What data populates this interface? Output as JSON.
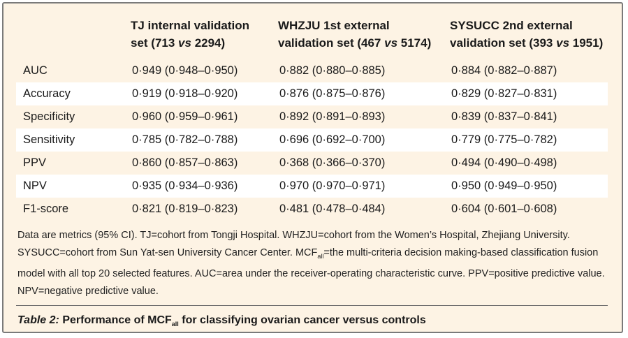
{
  "table": {
    "headers": [
      {
        "line1": "TJ internal validation",
        "line2_prefix": "set (713 ",
        "vs": "vs",
        "line2_suffix": " 2294)"
      },
      {
        "line1": "WHZJU 1st external",
        "line2_prefix": "validation set (467 ",
        "vs": "vs",
        "line2_suffix": " 5174)"
      },
      {
        "line1": "SYSUCC 2nd external",
        "line2_prefix": "validation set (393 ",
        "vs": "vs",
        "line2_suffix": " 1951)"
      }
    ],
    "rows": [
      {
        "metric": "AUC",
        "tj": "0·949 (0·948–0·950)",
        "whzju": "0·882 (0·880–0·885)",
        "sysucc": "0·884 (0·882–0·887)"
      },
      {
        "metric": "Accuracy",
        "tj": "0·919 (0·918–0·920)",
        "whzju": "0·876 (0·875–0·876)",
        "sysucc": "0·829 (0·827–0·831)"
      },
      {
        "metric": "Specificity",
        "tj": "0·960 (0·959–0·961)",
        "whzju": "0·892 (0·891–0·893)",
        "sysucc": "0·839 (0·837–0·841)"
      },
      {
        "metric": "Sensitivity",
        "tj": "0·785 (0·782–0·788)",
        "whzju": "0·696 (0·692–0·700)",
        "sysucc": "0·779 (0·775–0·782)"
      },
      {
        "metric": "PPV",
        "tj": "0·860 (0·857–0·863)",
        "whzju": "0·368 (0·366–0·370)",
        "sysucc": "0·494 (0·490–0·498)"
      },
      {
        "metric": "NPV",
        "tj": "0·935 (0·934–0·936)",
        "whzju": "0·970 (0·970–0·971)",
        "sysucc": "0·950 (0·949–0·950)"
      },
      {
        "metric": "F1-score",
        "tj": "0·821 (0·819–0·823)",
        "whzju": "0·481 (0·478–0·484)",
        "sysucc": "0·604 (0·601–0·608)"
      }
    ]
  },
  "footnote": {
    "before_sub": "Data are metrics (95% CI). TJ=cohort from Tongji Hospital. WHZJU=cohort from the Women’s Hospital, Zhejiang University. SYSUCC=cohort from Sun Yat-sen University Cancer Center. MCF",
    "sub": "all",
    "after_sub": "=the multi-criteria decision making-based classification fusion model with all top 20 selected features. AUC=area under the receiver-operating characteristic curve. PPV=positive predictive value. NPV=negative predictive value."
  },
  "caption": {
    "label": "Table 2:",
    "text_before_sub": " Performance of MCF",
    "sub": "all",
    "text_after_sub": " for classifying ovarian cancer versus controls"
  },
  "colors": {
    "panel_background": "#fdf3e4",
    "alt_row": "#ffffff",
    "border": "#7a7a7a"
  }
}
